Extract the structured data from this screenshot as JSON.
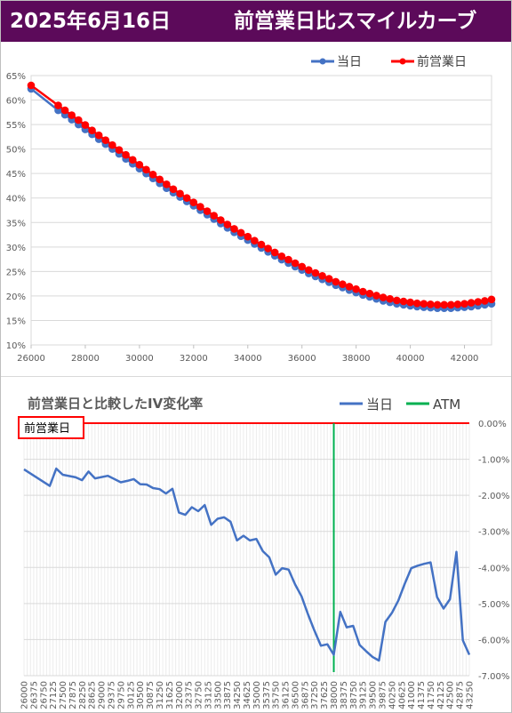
{
  "header": {
    "date": "2025年6月16日",
    "title": "前営業日比スマイルカーブ"
  },
  "colors": {
    "header_bg": "#5c0a5a",
    "today": "#4472c4",
    "prev": "#ff0000",
    "iv_line": "#4472c4",
    "atm": "#00b050",
    "baseline": "#ff0000"
  },
  "chart_data": [
    {
      "type": "line",
      "title": "",
      "legend_position": "top-right",
      "grid": true,
      "xlim": [
        26000,
        43000
      ],
      "ylim": [
        10,
        65
      ],
      "x_ticks": [
        "26000",
        "28000",
        "30000",
        "32000",
        "34000",
        "36000",
        "38000",
        "40000",
        "42000"
      ],
      "y_ticks": [
        "10%",
        "15%",
        "20%",
        "25%",
        "30%",
        "35%",
        "40%",
        "45%",
        "50%",
        "55%",
        "60%",
        "65%"
      ],
      "x": [
        26000,
        27000,
        27250,
        27500,
        27750,
        28000,
        28250,
        28500,
        28750,
        29000,
        29250,
        29500,
        29750,
        30000,
        30250,
        30500,
        30750,
        31000,
        31250,
        31500,
        31750,
        32000,
        32250,
        32500,
        32750,
        33000,
        33250,
        33500,
        33750,
        34000,
        34250,
        34500,
        34750,
        35000,
        35250,
        35500,
        35750,
        36000,
        36250,
        36500,
        36750,
        37000,
        37250,
        37500,
        37750,
        38000,
        38250,
        38500,
        38750,
        39000,
        39250,
        39500,
        39750,
        40000,
        40250,
        40500,
        40750,
        41000,
        41250,
        41500,
        41750,
        42000,
        42250,
        42500,
        42750,
        43000
      ],
      "series": [
        {
          "name": "当日",
          "values": [
            62.3,
            57.9,
            57.0,
            56.0,
            55.0,
            54.0,
            53.0,
            52.0,
            51.0,
            50.0,
            49.0,
            48.0,
            47.0,
            46.0,
            45.0,
            44.0,
            43.0,
            42.0,
            41.1,
            40.2,
            39.3,
            38.4,
            37.5,
            36.6,
            35.7,
            34.8,
            33.9,
            33.0,
            32.2,
            31.4,
            30.6,
            29.8,
            29.0,
            28.2,
            27.4,
            26.7,
            26.0,
            25.3,
            24.6,
            24.0,
            23.4,
            22.8,
            22.2,
            21.7,
            21.2,
            20.7,
            20.2,
            19.8,
            19.4,
            19.0,
            18.7,
            18.4,
            18.2,
            18.0,
            17.8,
            17.7,
            17.6,
            17.5,
            17.5,
            17.5,
            17.6,
            17.7,
            17.8,
            18.0,
            18.2,
            18.4
          ]
        },
        {
          "name": "前営業日",
          "values": [
            63.0,
            58.9,
            57.9,
            56.9,
            55.9,
            54.9,
            53.8,
            52.8,
            51.8,
            50.8,
            49.8,
            48.8,
            47.8,
            46.8,
            45.8,
            44.8,
            43.8,
            42.8,
            41.8,
            40.9,
            40.0,
            39.1,
            38.2,
            37.3,
            36.4,
            35.5,
            34.6,
            33.7,
            32.9,
            32.1,
            31.3,
            30.5,
            29.7,
            28.9,
            28.1,
            27.4,
            26.7,
            26.0,
            25.3,
            24.7,
            24.1,
            23.5,
            22.9,
            22.4,
            21.9,
            21.4,
            20.9,
            20.5,
            20.1,
            19.7,
            19.4,
            19.1,
            18.9,
            18.7,
            18.5,
            18.4,
            18.3,
            18.2,
            18.2,
            18.2,
            18.3,
            18.4,
            18.6,
            18.8,
            19.0,
            19.3
          ]
        }
      ]
    },
    {
      "type": "line",
      "title": "前営業日と比較したIV変化率",
      "legend_position": "top-right",
      "baseline_label": "前営業日",
      "grid": true,
      "atm_label": "ATM",
      "atm_x": 38000,
      "xlim": [
        26000,
        43250
      ],
      "ylim": [
        -7.0,
        0.0
      ],
      "x_ticks": [
        "26000",
        "26375",
        "26750",
        "27125",
        "27500",
        "27875",
        "28250",
        "28625",
        "29000",
        "29375",
        "29750",
        "30125",
        "30500",
        "30875",
        "31250",
        "31625",
        "32000",
        "32375",
        "32750",
        "33125",
        "33500",
        "33875",
        "34250",
        "34625",
        "35000",
        "35375",
        "35750",
        "36125",
        "36500",
        "36875",
        "37250",
        "37625",
        "38000",
        "38375",
        "38750",
        "39125",
        "39500",
        "39875",
        "40250",
        "40625",
        "41000",
        "41375",
        "41750",
        "42125",
        "42500",
        "42875",
        "43250"
      ],
      "y_ticks": [
        "0.00%",
        "-1.00%",
        "-2.00%",
        "-3.00%",
        "-4.00%",
        "-5.00%",
        "-6.00%",
        "-7.00%"
      ],
      "x": [
        26000,
        27000,
        27250,
        27500,
        28000,
        28250,
        28500,
        28750,
        29250,
        29750,
        30000,
        30250,
        30500,
        30750,
        31000,
        31250,
        31500,
        31750,
        32000,
        32250,
        32500,
        32750,
        33000,
        33250,
        33500,
        33750,
        34000,
        34250,
        34500,
        34750,
        35000,
        35250,
        35500,
        35750,
        36000,
        36250,
        36500,
        36750,
        37000,
        37250,
        37500,
        37750,
        38000,
        38250,
        38500,
        38750,
        39000,
        39250,
        39500,
        39750,
        40000,
        40250,
        40500,
        40750,
        41000,
        41250,
        41500,
        41750,
        42000,
        42250,
        42500,
        42750,
        43000,
        43250
      ],
      "series": [
        {
          "name": "当日",
          "values": [
            -1.28,
            -1.74,
            -1.26,
            -1.43,
            -1.5,
            -1.58,
            -1.34,
            -1.53,
            -1.46,
            -1.64,
            -1.6,
            -1.55,
            -1.69,
            -1.7,
            -1.8,
            -1.83,
            -1.95,
            -1.82,
            -2.48,
            -2.54,
            -2.33,
            -2.44,
            -2.27,
            -2.82,
            -2.65,
            -2.61,
            -2.73,
            -3.25,
            -3.12,
            -3.25,
            -3.21,
            -3.55,
            -3.72,
            -4.2,
            -4.02,
            -4.06,
            -4.47,
            -4.8,
            -5.3,
            -5.75,
            -6.17,
            -6.13,
            -6.42,
            -5.23,
            -5.66,
            -5.62,
            -6.15,
            -6.32,
            -6.48,
            -6.58,
            -5.51,
            -5.26,
            -4.92,
            -4.45,
            -4.02,
            -3.95,
            -3.9,
            -3.86,
            -4.82,
            -5.14,
            -4.88,
            -3.57,
            -6.02,
            -6.42
          ]
        }
      ]
    }
  ]
}
